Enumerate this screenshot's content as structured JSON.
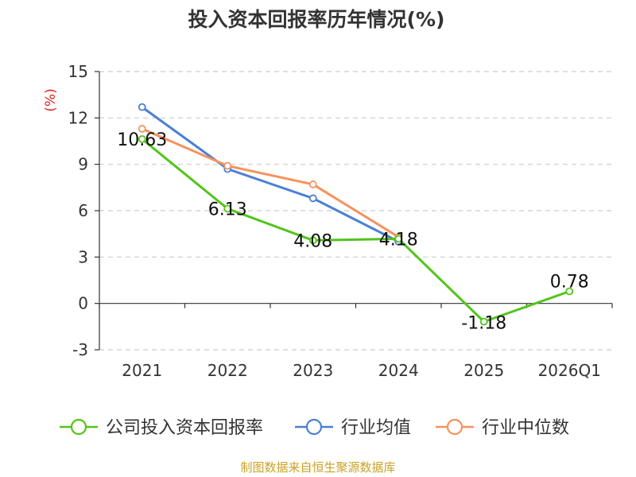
{
  "chart_data": {
    "type": "line",
    "title": "投入资本回报率历年情况(%)",
    "ylabel": "(%)",
    "xlabel": "",
    "categories": [
      "2021",
      "2022",
      "2023",
      "2024",
      "2025",
      "2026Q1"
    ],
    "ylim": [
      -3,
      15
    ],
    "yticks": [
      15,
      12,
      9,
      6,
      3,
      0,
      -3
    ],
    "grid": true,
    "legend_position": "bottom",
    "series": [
      {
        "name": "公司投入资本回报率",
        "color": "#52c41a",
        "values": [
          10.63,
          6.13,
          4.08,
          4.18,
          -1.18,
          0.78
        ],
        "labels": [
          "10.63",
          "6.13",
          "4.08",
          "4.18",
          "-1.18",
          "0.78"
        ]
      },
      {
        "name": "行业均值",
        "color": "#4a7fd6",
        "values": [
          12.7,
          8.7,
          6.8,
          4.0,
          null,
          null
        ]
      },
      {
        "name": "行业中位数",
        "color": "#f5925e",
        "values": [
          11.3,
          8.9,
          7.7,
          4.3,
          null,
          null
        ]
      }
    ]
  },
  "source": "制图数据来自恒生聚源数据库"
}
